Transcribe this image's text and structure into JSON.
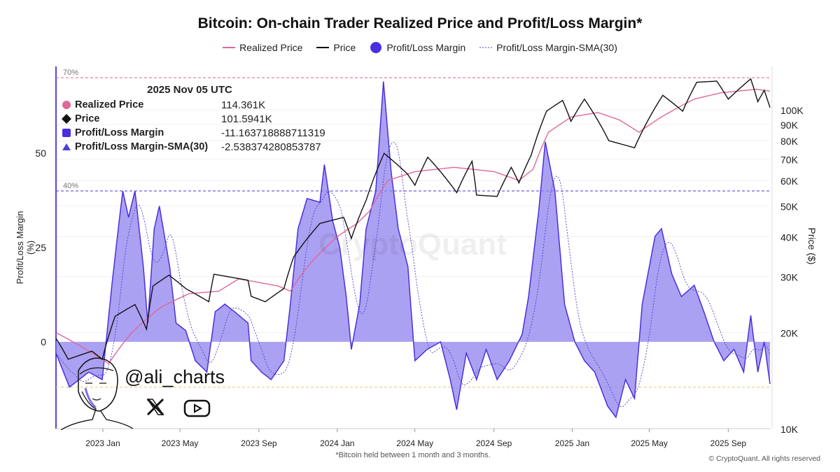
{
  "chart_data": {
    "type": "line",
    "title": "Bitcoin: On-chain Trader Realized Price and Profit/Loss Margin*",
    "footnote": "*Bitcoin held between 1 month and 3 months.",
    "copyright": "© CryptoQuant. All rights reserved",
    "watermark": "CryptoQuant",
    "left_axis": {
      "label": "Profit/Loss Margin (%)",
      "ticks": [
        50,
        25,
        0
      ],
      "range": [
        -23,
        73
      ]
    },
    "right_axis": {
      "label": "Price ($)",
      "scale": "log",
      "range": [
        10,
        125
      ],
      "ticks": [
        "100K",
        "90K",
        "80K",
        "70K",
        "60K",
        "50K",
        "40K",
        "30K",
        "20K",
        "10K"
      ],
      "tick_values": [
        100,
        90,
        80,
        70,
        60,
        50,
        40,
        30,
        20,
        10
      ]
    },
    "x_axis": {
      "range": [
        "2022-10-20",
        "2025-11-05"
      ],
      "ticks": [
        "2023 Jan",
        "2023 May",
        "2023 Sep",
        "2024 Jan",
        "2024 May",
        "2024 Sep",
        "2025 Jan",
        "2025 May",
        "2025 Sep"
      ],
      "tick_dates": [
        "2023-01-01",
        "2023-05-01",
        "2023-09-01",
        "2024-01-01",
        "2024-05-01",
        "2024-09-01",
        "2025-01-01",
        "2025-05-01",
        "2025-09-01"
      ]
    },
    "reference_lines": [
      {
        "label": "70%",
        "value": 70,
        "color": "#e07a8e"
      },
      {
        "label": "40%",
        "value": 40,
        "color": "#5a4de0"
      },
      {
        "label": "",
        "value": -12,
        "color": "#e0d98a"
      }
    ],
    "legend": [
      "Realized Price",
      "Price",
      "Profit/Loss Margin",
      "Profit/Loss Margin-SMA(30)"
    ],
    "colors": {
      "realized": "#e0679a",
      "price": "#111111",
      "margin_line": "#4a2fe0",
      "margin_fill": "#8f82ee",
      "sma": "#4a3fd0"
    },
    "series": [
      {
        "name": "Price",
        "axis": "right",
        "unit": "K USD",
        "points": [
          [
            "2022-10-20",
            19.2
          ],
          [
            "2022-11-08",
            16.5
          ],
          [
            "2022-12-15",
            17.5
          ],
          [
            "2022-12-31",
            16.5
          ],
          [
            "2023-01-20",
            22.5
          ],
          [
            "2023-02-20",
            24.5
          ],
          [
            "2023-03-10",
            20.5
          ],
          [
            "2023-03-20",
            28
          ],
          [
            "2023-04-14",
            30.3
          ],
          [
            "2023-05-10",
            27.5
          ],
          [
            "2023-06-15",
            25
          ],
          [
            "2023-06-23",
            30.5
          ],
          [
            "2023-08-15",
            29.2
          ],
          [
            "2023-08-20",
            26
          ],
          [
            "2023-09-11",
            25
          ],
          [
            "2023-10-10",
            27.5
          ],
          [
            "2023-10-25",
            34.5
          ],
          [
            "2023-12-05",
            44
          ],
          [
            "2024-01-11",
            46
          ],
          [
            "2024-01-23",
            39.5
          ],
          [
            "2024-02-15",
            52
          ],
          [
            "2024-03-14",
            73
          ],
          [
            "2024-04-19",
            63
          ],
          [
            "2024-05-01",
            58
          ],
          [
            "2024-05-21",
            71
          ],
          [
            "2024-07-05",
            55
          ],
          [
            "2024-07-29",
            69
          ],
          [
            "2024-08-05",
            54
          ],
          [
            "2024-09-06",
            53.5
          ],
          [
            "2024-09-28",
            66
          ],
          [
            "2024-10-10",
            59
          ],
          [
            "2024-10-29",
            72
          ],
          [
            "2024-11-22",
            99
          ],
          [
            "2024-12-17",
            107
          ],
          [
            "2024-12-30",
            92
          ],
          [
            "2025-01-20",
            108
          ],
          [
            "2025-02-27",
            80
          ],
          [
            "2025-04-08",
            76
          ],
          [
            "2025-05-22",
            111
          ],
          [
            "2025-06-22",
            99
          ],
          [
            "2025-07-14",
            122
          ],
          [
            "2025-08-14",
            123
          ],
          [
            "2025-09-01",
            108
          ],
          [
            "2025-10-06",
            125
          ],
          [
            "2025-10-17",
            106
          ],
          [
            "2025-10-27",
            115
          ],
          [
            "2025-11-05",
            101.6
          ]
        ]
      },
      {
        "name": "Realized Price",
        "axis": "right",
        "unit": "K USD",
        "points": [
          [
            "2022-10-20",
            20
          ],
          [
            "2022-11-20",
            18.5
          ],
          [
            "2023-01-10",
            16
          ],
          [
            "2023-02-15",
            20
          ],
          [
            "2023-04-01",
            24
          ],
          [
            "2023-05-15",
            26.5
          ],
          [
            "2023-07-01",
            27
          ],
          [
            "2023-08-01",
            29.5
          ],
          [
            "2023-10-01",
            28
          ],
          [
            "2023-10-20",
            27
          ],
          [
            "2023-11-20",
            33
          ],
          [
            "2024-01-01",
            40
          ],
          [
            "2024-02-01",
            44
          ],
          [
            "2024-02-20",
            48
          ],
          [
            "2024-03-20",
            60
          ],
          [
            "2024-05-01",
            64
          ],
          [
            "2024-07-01",
            66
          ],
          [
            "2024-09-01",
            64
          ],
          [
            "2024-10-10",
            60
          ],
          [
            "2024-11-01",
            65
          ],
          [
            "2024-11-25",
            85
          ],
          [
            "2024-12-31",
            95
          ],
          [
            "2025-02-10",
            98
          ],
          [
            "2025-03-15",
            93
          ],
          [
            "2025-04-15",
            85
          ],
          [
            "2025-05-20",
            95
          ],
          [
            "2025-07-10",
            108
          ],
          [
            "2025-08-20",
            113
          ],
          [
            "2025-10-15",
            116
          ],
          [
            "2025-11-05",
            114.4
          ]
        ]
      },
      {
        "name": "Profit/Loss Margin",
        "axis": "left",
        "unit": "%",
        "points": [
          [
            "2022-10-20",
            -3
          ],
          [
            "2022-11-10",
            -12
          ],
          [
            "2022-12-10",
            -8
          ],
          [
            "2022-12-31",
            -10
          ],
          [
            "2023-01-15",
            15
          ],
          [
            "2023-01-25",
            30
          ],
          [
            "2023-02-01",
            40
          ],
          [
            "2023-02-10",
            33
          ],
          [
            "2023-02-20",
            40
          ],
          [
            "2023-03-05",
            20
          ],
          [
            "2023-03-12",
            5
          ],
          [
            "2023-03-22",
            30
          ],
          [
            "2023-03-30",
            36
          ],
          [
            "2023-04-15",
            20
          ],
          [
            "2023-04-25",
            5
          ],
          [
            "2023-05-10",
            3
          ],
          [
            "2023-05-25",
            -5
          ],
          [
            "2023-06-12",
            -8
          ],
          [
            "2023-06-25",
            8
          ],
          [
            "2023-07-10",
            10
          ],
          [
            "2023-07-25",
            8
          ],
          [
            "2023-08-15",
            5
          ],
          [
            "2023-08-20",
            -5
          ],
          [
            "2023-09-05",
            -8
          ],
          [
            "2023-09-20",
            -10
          ],
          [
            "2023-10-10",
            -5
          ],
          [
            "2023-10-20",
            10
          ],
          [
            "2023-11-01",
            30
          ],
          [
            "2023-11-15",
            38
          ],
          [
            "2023-12-05",
            37
          ],
          [
            "2023-12-12",
            47
          ],
          [
            "2023-12-25",
            32
          ],
          [
            "2024-01-05",
            25
          ],
          [
            "2024-01-15",
            12
          ],
          [
            "2024-01-23",
            -2
          ],
          [
            "2024-02-05",
            10
          ],
          [
            "2024-02-15",
            30
          ],
          [
            "2024-03-01",
            40
          ],
          [
            "2024-03-13",
            69
          ],
          [
            "2024-03-25",
            45
          ],
          [
            "2024-04-05",
            30
          ],
          [
            "2024-04-20",
            20
          ],
          [
            "2024-05-01",
            -5
          ],
          [
            "2024-05-20",
            -2
          ],
          [
            "2024-06-10",
            0
          ],
          [
            "2024-06-25",
            -10
          ],
          [
            "2024-07-05",
            -18
          ],
          [
            "2024-07-20",
            -3
          ],
          [
            "2024-08-05",
            -10
          ],
          [
            "2024-08-20",
            -2
          ],
          [
            "2024-09-06",
            -10
          ],
          [
            "2024-09-25",
            -5
          ],
          [
            "2024-10-15",
            2
          ],
          [
            "2024-10-25",
            12
          ],
          [
            "2024-11-10",
            35
          ],
          [
            "2024-11-20",
            53
          ],
          [
            "2024-12-05",
            40
          ],
          [
            "2024-12-20",
            10
          ],
          [
            "2025-01-05",
            0
          ],
          [
            "2025-01-20",
            -5
          ],
          [
            "2025-02-05",
            -8
          ],
          [
            "2025-02-25",
            -17
          ],
          [
            "2025-03-10",
            -20
          ],
          [
            "2025-03-25",
            -10
          ],
          [
            "2025-04-08",
            -15
          ],
          [
            "2025-04-20",
            10
          ],
          [
            "2025-05-10",
            28
          ],
          [
            "2025-05-20",
            30
          ],
          [
            "2025-06-05",
            18
          ],
          [
            "2025-06-20",
            12
          ],
          [
            "2025-07-10",
            15
          ],
          [
            "2025-07-25",
            8
          ],
          [
            "2025-08-10",
            0
          ],
          [
            "2025-08-25",
            -5
          ],
          [
            "2025-09-10",
            -2
          ],
          [
            "2025-09-25",
            -8
          ],
          [
            "2025-10-06",
            7
          ],
          [
            "2025-10-17",
            -8
          ],
          [
            "2025-10-27",
            0
          ],
          [
            "2025-11-05",
            -11.16
          ]
        ]
      },
      {
        "name": "Profit/Loss Margin-SMA(30)",
        "axis": "left",
        "unit": "%",
        "derived_from": "Profit/Loss Margin",
        "window_days": 30
      }
    ]
  },
  "tooltip": {
    "date": "2025 Nov 05 UTC",
    "rows": [
      {
        "name": "Realized Price",
        "value": "114.361K",
        "marker": "circle",
        "color": "#e0679a"
      },
      {
        "name": "Price",
        "value": "101.5941K",
        "marker": "diamond",
        "color": "#111111"
      },
      {
        "name": "Profit/Loss Margin",
        "value": "-11.163718888711319",
        "marker": "square",
        "color": "#4a2fe0"
      },
      {
        "name": "Profit/Loss Margin-SMA(30)",
        "value": "-2.538374280853787",
        "marker": "triangle",
        "color": "#4a3fd0"
      }
    ]
  },
  "branding": {
    "handle": "@ali_charts",
    "icons": [
      "x-logo-icon",
      "youtube-icon"
    ]
  }
}
